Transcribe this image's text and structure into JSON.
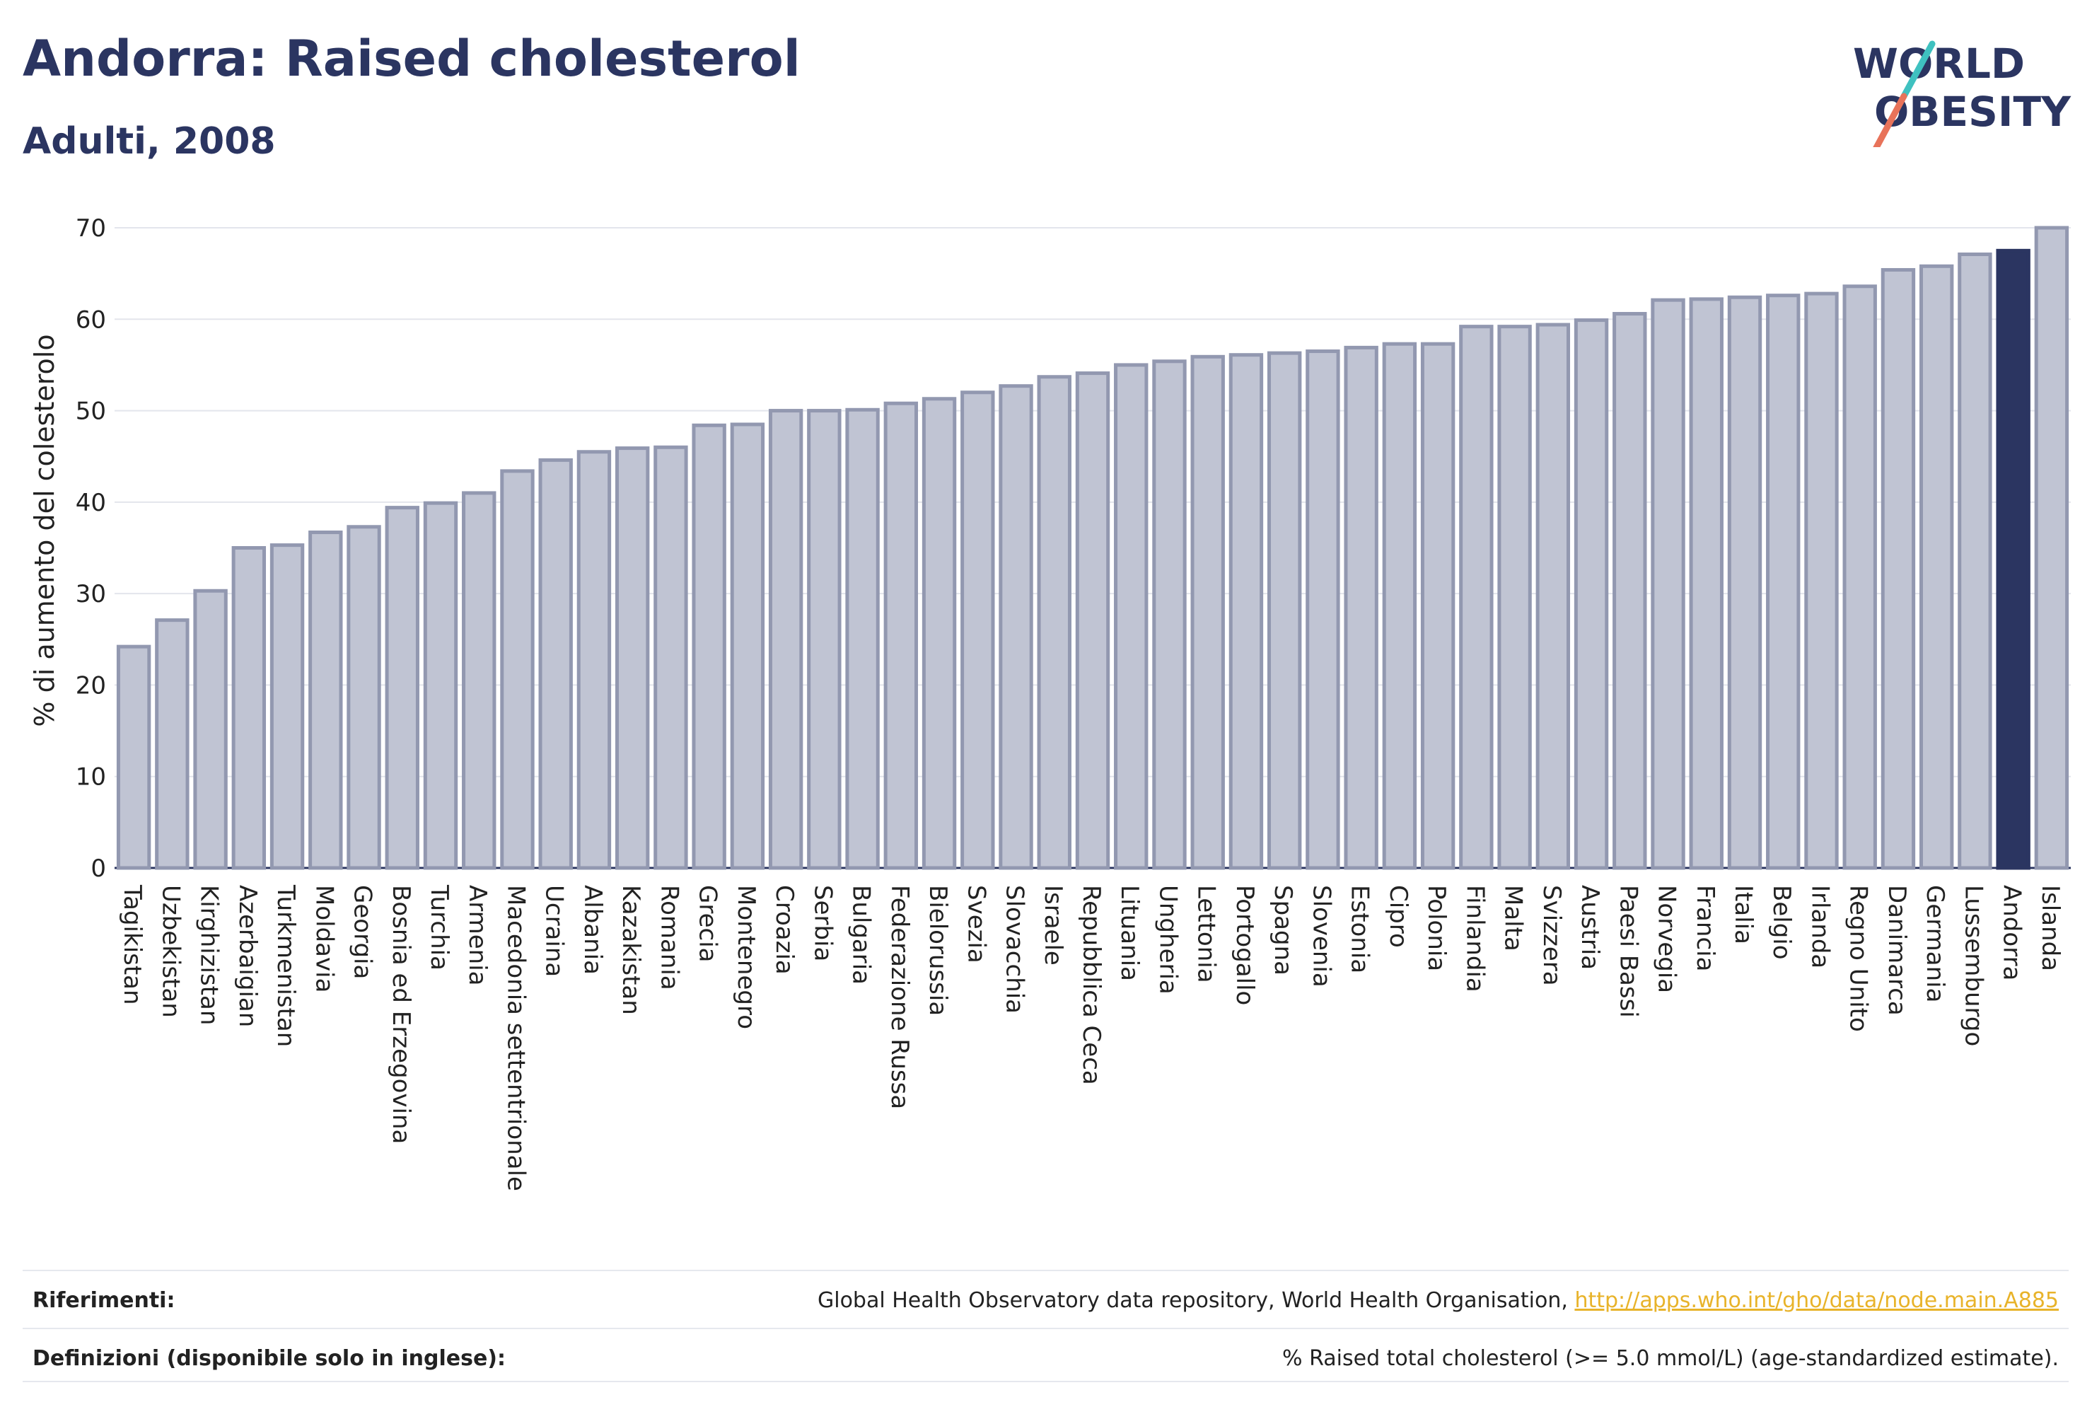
{
  "header": {
    "title": "Andorra: Raised cholesterol",
    "subtitle": "Adulti, 2008"
  },
  "logo": {
    "line1": "WORLD",
    "line2": "OBESITY",
    "colors": {
      "text": "#2b3561",
      "slash_top": "#3fc1c0",
      "slash_bottom": "#e8735a"
    }
  },
  "chart_data": {
    "type": "bar",
    "ylabel": "% di aumento del colesterolo",
    "ylim": [
      0,
      70
    ],
    "yticks": [
      0,
      10,
      20,
      30,
      40,
      50,
      60,
      70
    ],
    "grid": true,
    "highlight": "Andorra",
    "colors": {
      "bar": "#c0c4d3",
      "bar_edge": "#9298b0",
      "highlight": "#2b3561"
    },
    "categories": [
      "Tagikistan",
      "Uzbekistan",
      "Kirghizistan",
      "Azerbaigian",
      "Turkmenistan",
      "Moldavia",
      "Georgia",
      "Bosnia ed Erzegovina",
      "Turchia",
      "Armenia",
      "Macedonia settentrionale",
      "Ucraina",
      "Albania",
      "Kazakistan",
      "Romania",
      "Grecia",
      "Montenegro",
      "Croazia",
      "Serbia",
      "Bulgaria",
      "Federazione Russa",
      "Bielorussia",
      "Svezia",
      "Slovacchia",
      "Israele",
      "Repubblica Ceca",
      "Lituania",
      "Ungheria",
      "Lettonia",
      "Portogallo",
      "Spagna",
      "Slovenia",
      "Estonia",
      "Cipro",
      "Polonia",
      "Finlandia",
      "Malta",
      "Svizzera",
      "Austria",
      "Paesi Bassi",
      "Norvegia",
      "Francia",
      "Italia",
      "Belgio",
      "Irlanda",
      "Regno Unito",
      "Danimarca",
      "Germania",
      "Lussemburgo",
      "Andorra",
      "Islanda"
    ],
    "values": [
      24.2,
      27.1,
      30.3,
      35.0,
      35.3,
      36.7,
      37.3,
      39.4,
      39.9,
      41.0,
      43.4,
      44.6,
      45.5,
      45.9,
      46.0,
      48.4,
      48.5,
      50.0,
      50.0,
      50.1,
      50.8,
      51.3,
      52.0,
      52.7,
      53.7,
      54.1,
      55.0,
      55.4,
      55.9,
      56.1,
      56.3,
      56.5,
      56.9,
      57.3,
      57.3,
      59.2,
      59.2,
      59.4,
      59.9,
      60.6,
      62.1,
      62.2,
      62.4,
      62.6,
      62.8,
      63.6,
      65.4,
      65.8,
      67.1,
      67.5,
      70.0
    ]
  },
  "footer": {
    "references_label": "Riferimenti:",
    "references_text": "Global Health Observatory data repository, World Health Organisation,",
    "references_link": "http://apps.who.int/gho/data/node.main.A885",
    "definitions_label": "Definizioni (disponibile solo in inglese):",
    "definitions_text": "% Raised total cholesterol (>= 5.0 mmol/L) (age-standardized estimate)."
  }
}
